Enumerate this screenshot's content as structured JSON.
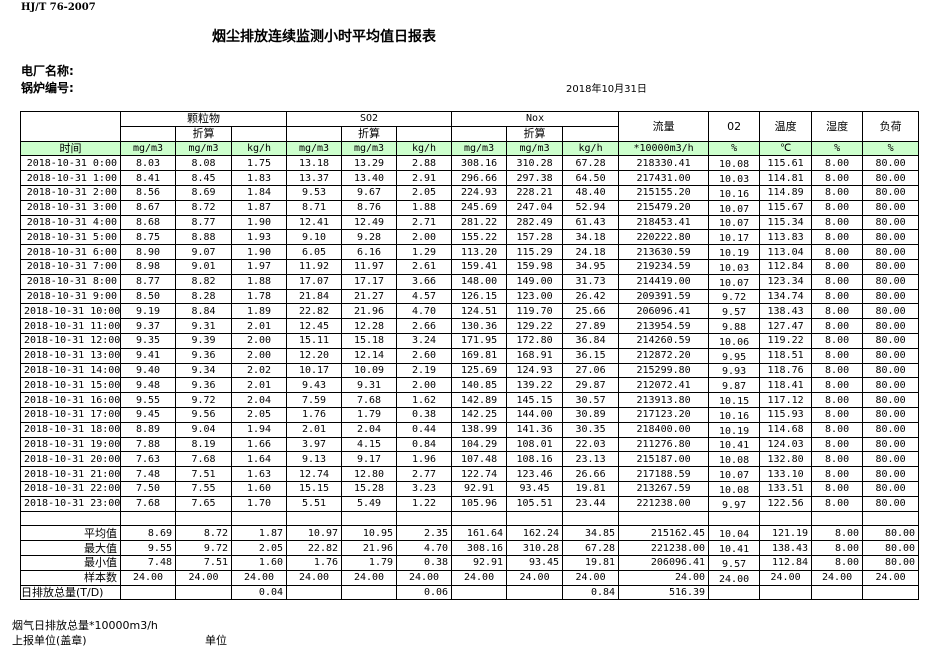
{
  "standard": "HJ/T  76-2007",
  "title": "烟尘排放连续监测小时平均值日报表",
  "plant_label": "电厂名称:",
  "boiler_label": "锅炉编号:",
  "date": "2018年10月31日",
  "header": {
    "groups": [
      "颗粒物",
      "SO2",
      "Nox"
    ],
    "converted": "折算",
    "flow": "流量",
    "o2": "02",
    "temp": "温度",
    "humidity": "湿度",
    "load": "负荷",
    "time": "时间",
    "units": [
      "mg/m3",
      "mg/m3",
      "kg/h",
      "mg/m3",
      "mg/m3",
      "kg/h",
      "mg/m3",
      "mg/m3",
      "kg/h",
      "*10000m3/h",
      "%",
      "℃",
      "%",
      "%"
    ]
  },
  "rows": [
    [
      "2018-10-31 0:00",
      "8.03",
      "8.08",
      "1.75",
      "13.18",
      "13.29",
      "2.88",
      "308.16",
      "310.28",
      "67.28",
      "218330.41",
      "10.08",
      "115.61",
      "8.00",
      "80.00"
    ],
    [
      "2018-10-31 1:00",
      "8.41",
      "8.45",
      "1.83",
      "13.37",
      "13.40",
      "2.91",
      "296.66",
      "297.38",
      "64.50",
      "217431.00",
      "10.03",
      "114.81",
      "8.00",
      "80.00"
    ],
    [
      "2018-10-31 2:00",
      "8.56",
      "8.69",
      "1.84",
      "9.53",
      "9.67",
      "2.05",
      "224.93",
      "228.21",
      "48.40",
      "215155.20",
      "10.16",
      "114.89",
      "8.00",
      "80.00"
    ],
    [
      "2018-10-31 3:00",
      "8.67",
      "8.72",
      "1.87",
      "8.71",
      "8.76",
      "1.88",
      "245.69",
      "247.04",
      "52.94",
      "215479.20",
      "10.07",
      "115.67",
      "8.00",
      "80.00"
    ],
    [
      "2018-10-31 4:00",
      "8.68",
      "8.77",
      "1.90",
      "12.41",
      "12.49",
      "2.71",
      "281.22",
      "282.49",
      "61.43",
      "218453.41",
      "10.07",
      "115.34",
      "8.00",
      "80.00"
    ],
    [
      "2018-10-31 5:00",
      "8.75",
      "8.88",
      "1.93",
      "9.10",
      "9.28",
      "2.00",
      "155.22",
      "157.28",
      "34.18",
      "220222.80",
      "10.17",
      "113.83",
      "8.00",
      "80.00"
    ],
    [
      "2018-10-31 6:00",
      "8.90",
      "9.07",
      "1.90",
      "6.05",
      "6.16",
      "1.29",
      "113.20",
      "115.29",
      "24.18",
      "213630.59",
      "10.19",
      "113.04",
      "8.00",
      "80.00"
    ],
    [
      "2018-10-31 7:00",
      "8.98",
      "9.01",
      "1.97",
      "11.92",
      "11.97",
      "2.61",
      "159.41",
      "159.98",
      "34.95",
      "219234.59",
      "10.03",
      "112.84",
      "8.00",
      "80.00"
    ],
    [
      "2018-10-31 8:00",
      "8.77",
      "8.82",
      "1.88",
      "17.07",
      "17.17",
      "3.66",
      "148.00",
      "149.00",
      "31.73",
      "214419.00",
      "10.07",
      "123.34",
      "8.00",
      "80.00"
    ],
    [
      "2018-10-31 9:00",
      "8.50",
      "8.28",
      "1.78",
      "21.84",
      "21.27",
      "4.57",
      "126.15",
      "123.00",
      "26.42",
      "209391.59",
      "9.72",
      "134.74",
      "8.00",
      "80.00"
    ],
    [
      "2018-10-31 10:00",
      "9.19",
      "8.84",
      "1.89",
      "22.82",
      "21.96",
      "4.70",
      "124.51",
      "119.70",
      "25.66",
      "206096.41",
      "9.57",
      "138.43",
      "8.00",
      "80.00"
    ],
    [
      "2018-10-31 11:00",
      "9.37",
      "9.31",
      "2.01",
      "12.45",
      "12.28",
      "2.66",
      "130.36",
      "129.22",
      "27.89",
      "213954.59",
      "9.88",
      "127.47",
      "8.00",
      "80.00"
    ],
    [
      "2018-10-31 12:00",
      "9.35",
      "9.39",
      "2.00",
      "15.11",
      "15.18",
      "3.24",
      "171.95",
      "172.80",
      "36.84",
      "214260.59",
      "10.06",
      "119.22",
      "8.00",
      "80.00"
    ],
    [
      "2018-10-31 13:00",
      "9.41",
      "9.36",
      "2.00",
      "12.20",
      "12.14",
      "2.60",
      "169.81",
      "168.91",
      "36.15",
      "212872.20",
      "9.95",
      "118.51",
      "8.00",
      "80.00"
    ],
    [
      "2018-10-31 14:00",
      "9.40",
      "9.34",
      "2.02",
      "10.17",
      "10.09",
      "2.19",
      "125.69",
      "124.93",
      "27.06",
      "215299.80",
      "9.93",
      "118.76",
      "8.00",
      "80.00"
    ],
    [
      "2018-10-31 15:00",
      "9.48",
      "9.36",
      "2.01",
      "9.43",
      "9.31",
      "2.00",
      "140.85",
      "139.22",
      "29.87",
      "212072.41",
      "9.87",
      "118.41",
      "8.00",
      "80.00"
    ],
    [
      "2018-10-31 16:00",
      "9.55",
      "9.72",
      "2.04",
      "7.59",
      "7.68",
      "1.62",
      "142.89",
      "145.15",
      "30.57",
      "213913.80",
      "10.15",
      "117.12",
      "8.00",
      "80.00"
    ],
    [
      "2018-10-31 17:00",
      "9.45",
      "9.56",
      "2.05",
      "1.76",
      "1.79",
      "0.38",
      "142.25",
      "144.00",
      "30.89",
      "217123.20",
      "10.16",
      "115.93",
      "8.00",
      "80.00"
    ],
    [
      "2018-10-31 18:00",
      "8.89",
      "9.04",
      "1.94",
      "2.01",
      "2.04",
      "0.44",
      "138.99",
      "141.36",
      "30.35",
      "218400.00",
      "10.19",
      "114.68",
      "8.00",
      "80.00"
    ],
    [
      "2018-10-31 19:00",
      "7.88",
      "8.19",
      "1.66",
      "3.97",
      "4.15",
      "0.84",
      "104.29",
      "108.01",
      "22.03",
      "211276.80",
      "10.41",
      "124.03",
      "8.00",
      "80.00"
    ],
    [
      "2018-10-31 20:00",
      "7.63",
      "7.68",
      "1.64",
      "9.13",
      "9.17",
      "1.96",
      "107.48",
      "108.16",
      "23.13",
      "215187.00",
      "10.08",
      "132.80",
      "8.00",
      "80.00"
    ],
    [
      "2018-10-31 21:00",
      "7.48",
      "7.51",
      "1.63",
      "12.74",
      "12.80",
      "2.77",
      "122.74",
      "123.46",
      "26.66",
      "217188.59",
      "10.07",
      "133.10",
      "8.00",
      "80.00"
    ],
    [
      "2018-10-31 22:00",
      "7.50",
      "7.55",
      "1.60",
      "15.15",
      "15.28",
      "3.23",
      "92.91",
      "93.45",
      "19.81",
      "213267.59",
      "10.08",
      "133.51",
      "8.00",
      "80.00"
    ],
    [
      "2018-10-31 23:00",
      "7.68",
      "7.65",
      "1.70",
      "5.51",
      "5.49",
      "1.22",
      "105.96",
      "105.51",
      "23.44",
      "221238.00",
      "9.97",
      "122.56",
      "8.00",
      "80.00"
    ]
  ],
  "summary": [
    [
      "平均值",
      "8.69",
      "8.72",
      "1.87",
      "10.97",
      "10.95",
      "2.35",
      "161.64",
      "162.24",
      "34.85",
      "215162.45",
      "10.04",
      "121.19",
      "8.00",
      "80.00"
    ],
    [
      "最大值",
      "9.55",
      "9.72",
      "2.05",
      "22.82",
      "21.96",
      "4.70",
      "308.16",
      "310.28",
      "67.28",
      "221238.00",
      "10.41",
      "138.43",
      "8.00",
      "80.00"
    ],
    [
      "最小值",
      "7.48",
      "7.51",
      "1.60",
      "1.76",
      "1.79",
      "0.38",
      "92.91",
      "93.45",
      "19.81",
      "206096.41",
      "9.57",
      "112.84",
      "8.00",
      "80.00"
    ],
    [
      "样本数",
      "24.00",
      "24.00",
      "24.00",
      "24.00",
      "24.00",
      "24.00",
      "24.00",
      "24.00",
      "24.00",
      "24.00",
      "24.00",
      "24.00",
      "24.00",
      "24.00"
    ]
  ],
  "daily_total": [
    "日排放总量(T/D)",
    "",
    "",
    "0.04",
    "",
    "",
    "0.06",
    "",
    "",
    "0.84",
    "516.39",
    "",
    "",
    "",
    ""
  ],
  "footer": {
    "flue_gas_total": "烟气日排放总量*10000m3/h",
    "reporting_unit": "上报单位(盖章)",
    "unit": "单位"
  }
}
